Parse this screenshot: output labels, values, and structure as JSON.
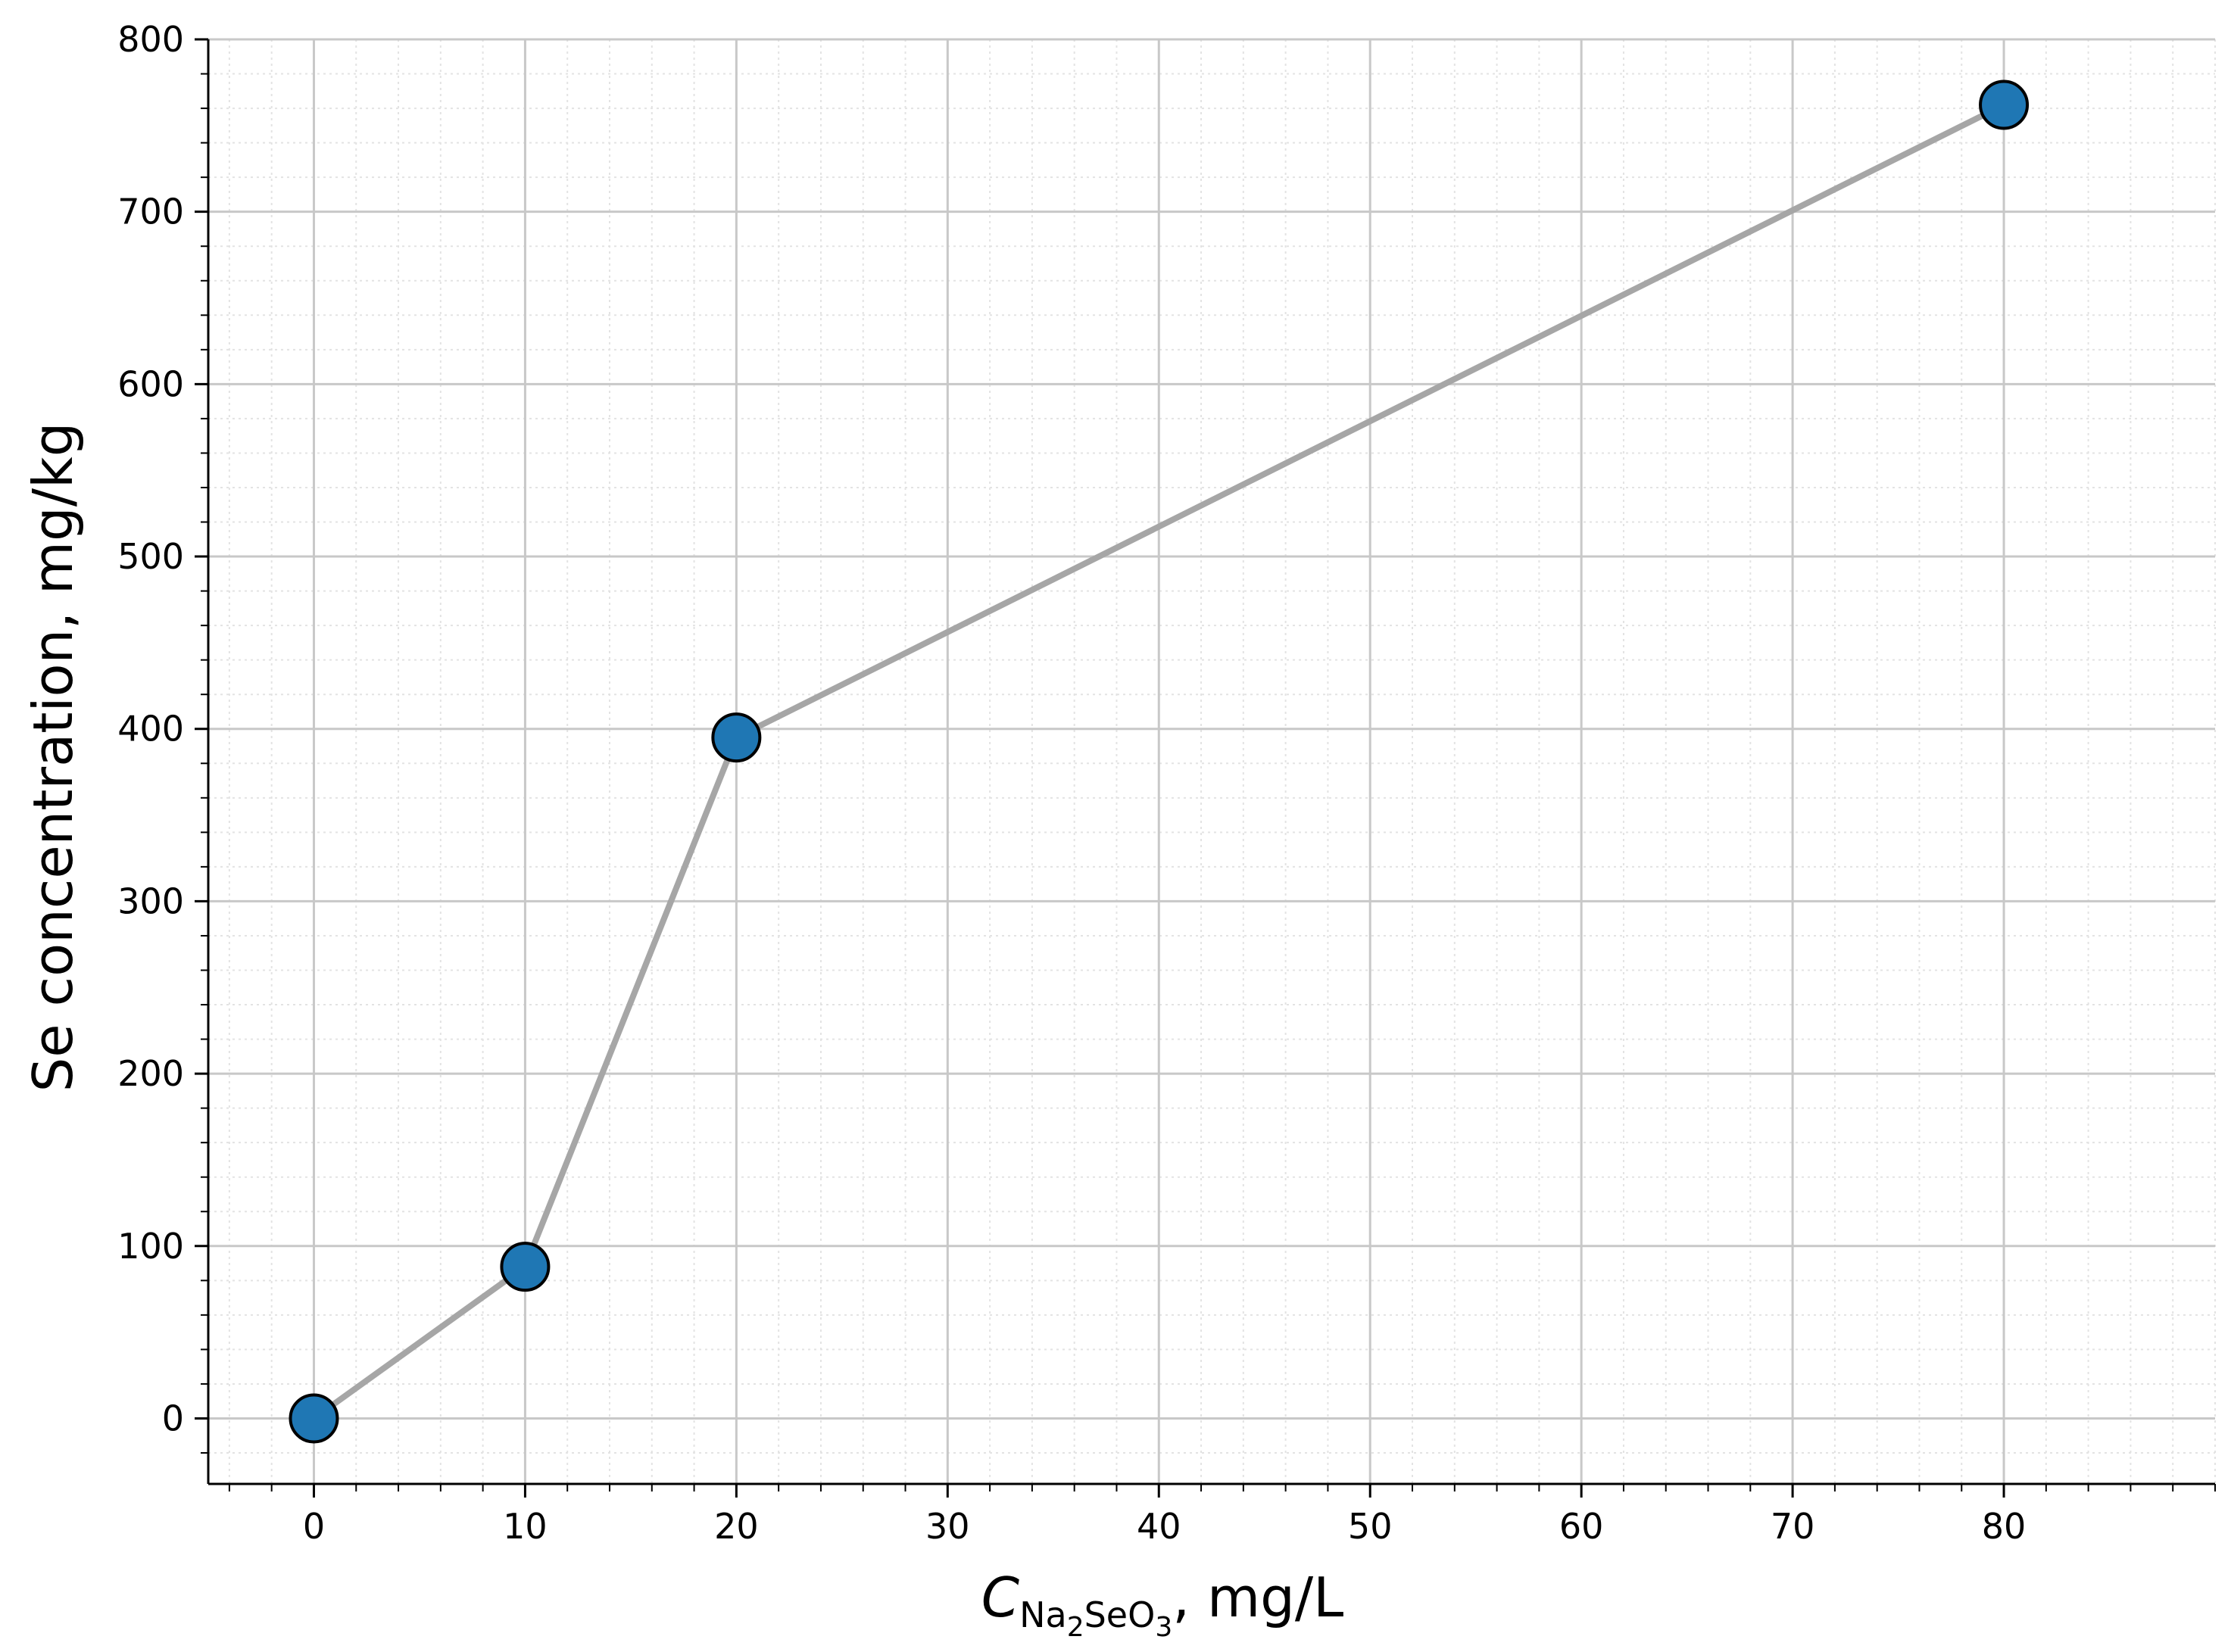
{
  "chart_data": {
    "type": "line",
    "title": "",
    "xlabel": {
      "symbol": "C",
      "subscript_parts": [
        {
          "text": "Na",
          "sub": false
        },
        {
          "text": "2",
          "sub": true
        },
        {
          "text": "SeO",
          "sub": false
        },
        {
          "text": "3",
          "sub": true
        }
      ],
      "unit": ", mg/L"
    },
    "ylabel": "Se concentration, mg/kg",
    "xlim": [
      -5,
      90
    ],
    "ylim": [
      -38,
      800
    ],
    "x_ticks": [
      0,
      10,
      20,
      30,
      40,
      50,
      60,
      70,
      80
    ],
    "y_ticks": [
      0,
      100,
      200,
      300,
      400,
      500,
      600,
      700,
      800
    ],
    "grid": true,
    "minor_grid": true,
    "legend": "none",
    "series": [
      {
        "x": [
          0,
          10,
          20,
          80
        ],
        "y": [
          0,
          88,
          395,
          762
        ],
        "line_color": "#a6a6a6",
        "marker_color": "#1f77b4",
        "marker_edge_color": "#000000"
      }
    ]
  }
}
